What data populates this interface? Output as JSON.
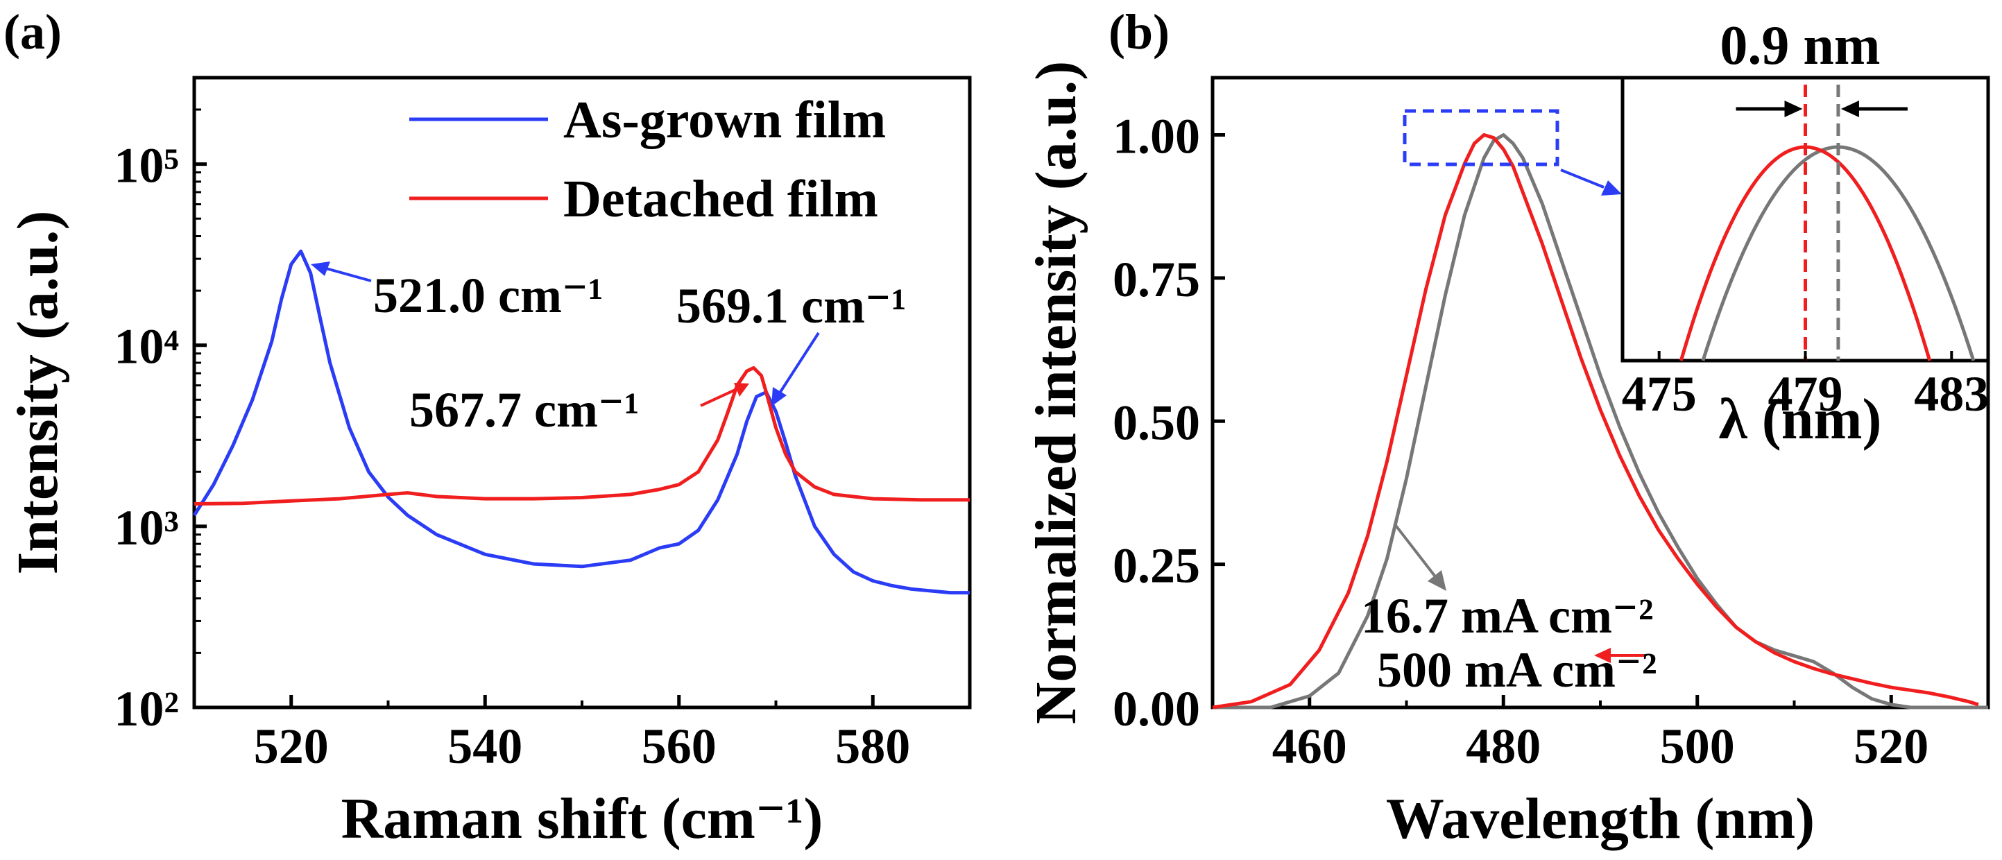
{
  "chart_data": [
    {
      "panel": "(a)",
      "type": "line",
      "y_scale": "log",
      "xlabel": "Raman shift (cm⁻¹)",
      "ylabel": "Intensity (a.u.)",
      "xlim": [
        510,
        590
      ],
      "ylim": [
        100,
        300000
      ],
      "x_ticks": [
        520,
        540,
        560,
        580
      ],
      "y_ticks": [
        {
          "value": 100,
          "label": "10²"
        },
        {
          "value": 1000,
          "label": "10³"
        },
        {
          "value": 10000,
          "label": "10⁴"
        },
        {
          "value": 100000,
          "label": "10⁵"
        }
      ],
      "legend_placement": "top-right",
      "series": [
        {
          "name": "As-grown film",
          "color": "#2a3cf5",
          "x": [
            510,
            512,
            514,
            516,
            518,
            519,
            520,
            521,
            522,
            523,
            524,
            526,
            528,
            530,
            532,
            535,
            540,
            545,
            550,
            555,
            558,
            560,
            562,
            564,
            566,
            567,
            568,
            569,
            570,
            571,
            572,
            574,
            576,
            578,
            580,
            582,
            584,
            586,
            588,
            590
          ],
          "values": [
            1150,
            1700,
            2800,
            5000,
            10500,
            18000,
            28000,
            33000,
            25000,
            14000,
            8000,
            3500,
            2000,
            1450,
            1150,
            900,
            700,
            620,
            600,
            650,
            760,
            800,
            950,
            1400,
            2500,
            3800,
            5200,
            5500,
            4300,
            2900,
            1900,
            1000,
            700,
            560,
            500,
            470,
            450,
            440,
            430,
            430
          ]
        },
        {
          "name": "Detached film",
          "color": "#f01e1e",
          "x": [
            510,
            515,
            520,
            525,
            530,
            532,
            535,
            540,
            545,
            550,
            555,
            558,
            560,
            562,
            564,
            565,
            566,
            567,
            567.7,
            568.5,
            569,
            570,
            571,
            572,
            574,
            576,
            580,
            585,
            590
          ],
          "values": [
            1330,
            1340,
            1380,
            1420,
            1500,
            1530,
            1460,
            1420,
            1420,
            1440,
            1500,
            1600,
            1700,
            2000,
            3000,
            4200,
            6000,
            7200,
            7500,
            6800,
            5500,
            3500,
            2500,
            2000,
            1650,
            1500,
            1420,
            1400,
            1400
          ]
        }
      ],
      "annotations": [
        {
          "text": "521.0 cm⁻¹",
          "x": 521.0,
          "series": "As-grown film"
        },
        {
          "text": "569.1 cm⁻¹",
          "x": 569.1,
          "series": "As-grown film"
        },
        {
          "text": "567.7 cm⁻¹",
          "x": 567.7,
          "series": "Detached film"
        }
      ]
    },
    {
      "panel": "(b)",
      "type": "line",
      "xlabel": "Wavelength (nm)",
      "ylabel": "Normalized intensity (a.u.)",
      "xlim": [
        450,
        530
      ],
      "ylim": [
        0,
        1.1
      ],
      "x_ticks": [
        460,
        480,
        500,
        520
      ],
      "y_ticks": [
        0.0,
        0.25,
        0.5,
        0.75,
        1.0
      ],
      "y_tick_labels": [
        "0.00",
        "0.25",
        "0.50",
        "0.75",
        "1.00"
      ],
      "series": [
        {
          "name": "16.7 mA cm⁻²",
          "color": "#777777",
          "x": [
            450,
            456,
            460,
            463,
            466,
            468,
            470,
            472,
            474,
            476,
            478,
            479,
            480,
            481,
            482,
            484,
            486,
            488,
            490,
            492,
            494,
            496,
            498,
            500,
            502,
            504,
            506,
            508,
            510,
            512,
            514,
            516,
            518,
            520,
            522,
            524,
            526,
            528,
            530
          ],
          "values": [
            0.0,
            0.0,
            0.02,
            0.06,
            0.16,
            0.26,
            0.4,
            0.56,
            0.72,
            0.86,
            0.96,
            0.99,
            1.0,
            0.985,
            0.96,
            0.88,
            0.78,
            0.68,
            0.58,
            0.49,
            0.41,
            0.34,
            0.28,
            0.225,
            0.18,
            0.14,
            0.115,
            0.1,
            0.09,
            0.08,
            0.06,
            0.035,
            0.015,
            0.005,
            0.0,
            0.0,
            0.0,
            0.0,
            0.0
          ]
        },
        {
          "name": "500 mA cm⁻²",
          "color": "#f01e1e",
          "x": [
            450,
            454,
            458,
            461,
            464,
            466,
            468,
            470,
            472,
            474,
            476,
            477,
            478,
            479,
            480,
            481,
            482,
            484,
            486,
            488,
            490,
            492,
            494,
            496,
            498,
            500,
            502,
            504,
            506,
            508,
            510,
            512,
            514,
            516,
            518,
            520,
            522,
            524,
            526,
            528,
            529
          ],
          "values": [
            0.0,
            0.01,
            0.04,
            0.1,
            0.2,
            0.3,
            0.43,
            0.58,
            0.73,
            0.86,
            0.95,
            0.985,
            1.0,
            0.995,
            0.975,
            0.945,
            0.9,
            0.81,
            0.71,
            0.61,
            0.52,
            0.44,
            0.37,
            0.31,
            0.26,
            0.215,
            0.175,
            0.14,
            0.115,
            0.095,
            0.08,
            0.068,
            0.058,
            0.05,
            0.042,
            0.035,
            0.03,
            0.025,
            0.018,
            0.01,
            0.005
          ]
        }
      ],
      "series_labels": [
        "16.7 mA cm⁻²",
        "500 mA cm⁻²"
      ],
      "inset": {
        "xlabel": "λ (nm)",
        "xlim": [
          474,
          484
        ],
        "x_ticks": [
          475,
          479,
          483
        ],
        "peak_red": 479.0,
        "peak_gray": 479.9,
        "annotation": "0.9 nm"
      }
    }
  ]
}
